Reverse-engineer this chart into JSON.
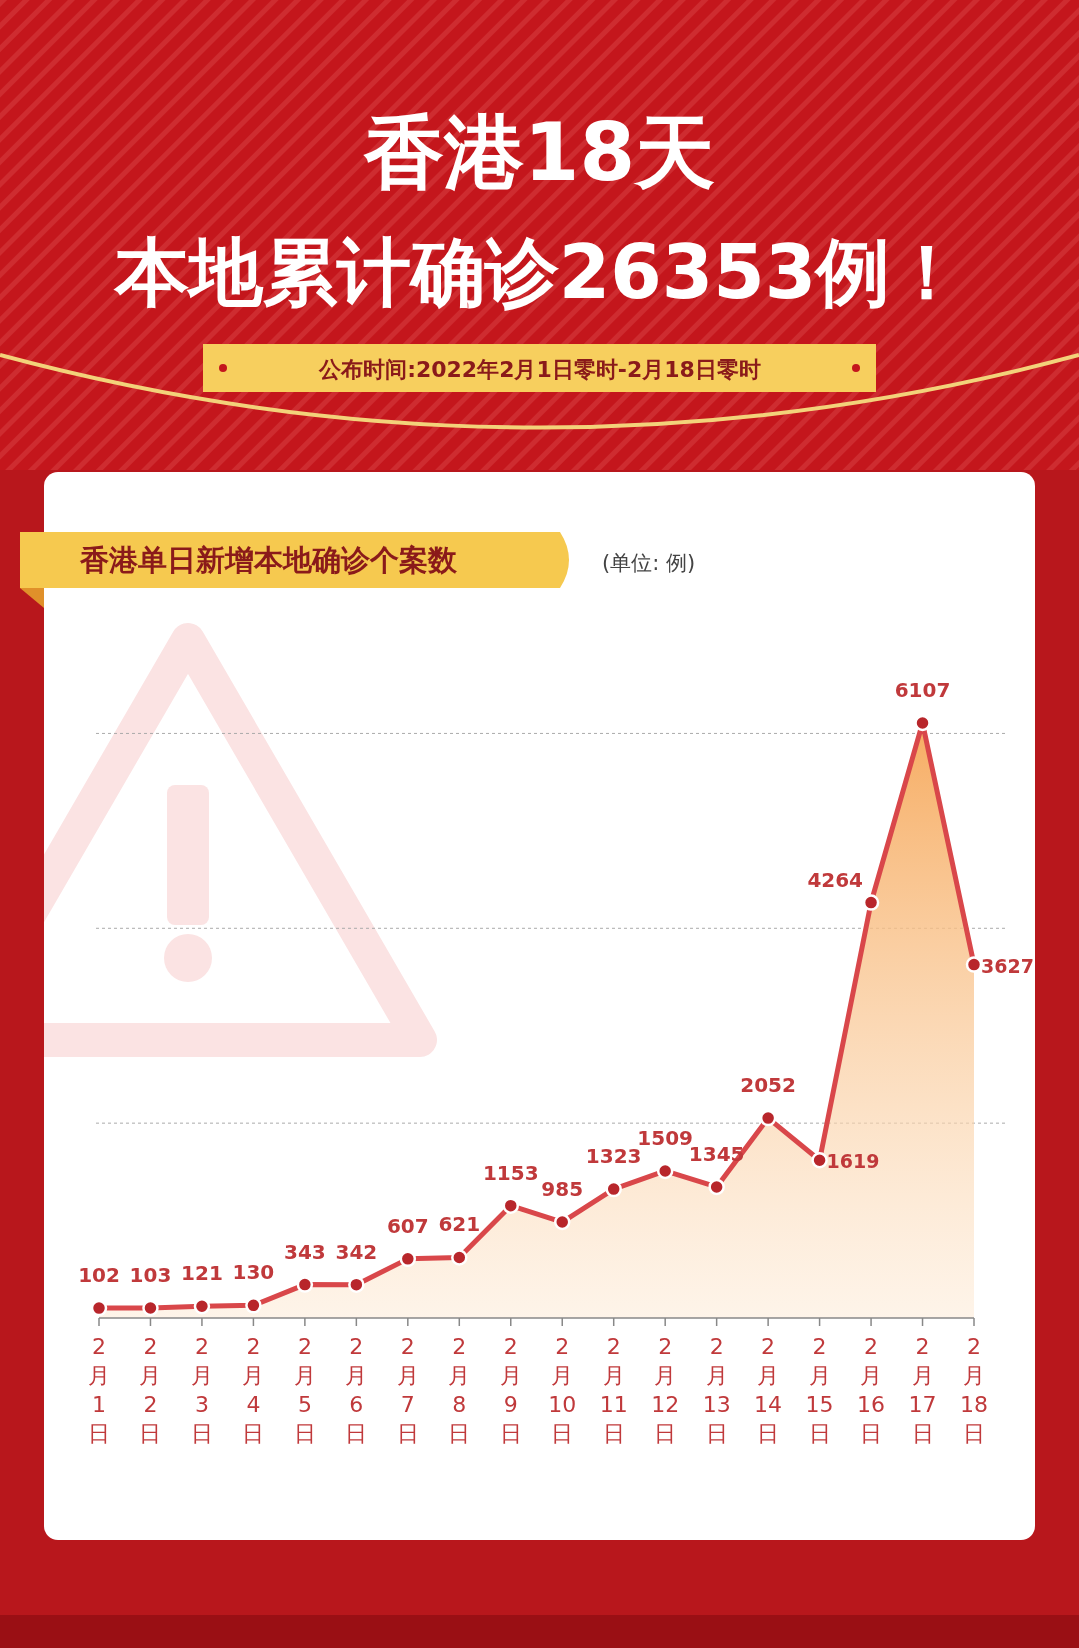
{
  "chart_data": {
    "type": "area",
    "title": "香港18天本地累计确诊26353例！",
    "subtitle": "公布时间:2022年2月1日零时-2月18日零时",
    "annotations": [
      "香港单日新增本地确诊个案数",
      "(单位: 例)"
    ],
    "categories": [
      "2月1日",
      "2月2日",
      "2月3日",
      "2月4日",
      "2月5日",
      "2月6日",
      "2月7日",
      "2月8日",
      "2月9日",
      "2月10日",
      "2月11日",
      "2月12日",
      "2月13日",
      "2月14日",
      "2月15日",
      "2月16日",
      "2月17日",
      "2月18日"
    ],
    "series": [
      {
        "color": "#d9474a",
        "values": [
          102,
          103,
          121,
          130,
          343,
          342,
          607,
          621,
          1153,
          985,
          1323,
          1509,
          1345,
          2052,
          1619,
          4264,
          6107,
          3627
        ]
      }
    ],
    "yticks": [
      {
        "value": 2000,
        "label": null
      },
      {
        "value": 4000,
        "label": null
      },
      {
        "value": 6000,
        "label": null
      }
    ],
    "grid": "y",
    "tick_labels": "x",
    "marker": "circle",
    "data_labels": true
  }
}
